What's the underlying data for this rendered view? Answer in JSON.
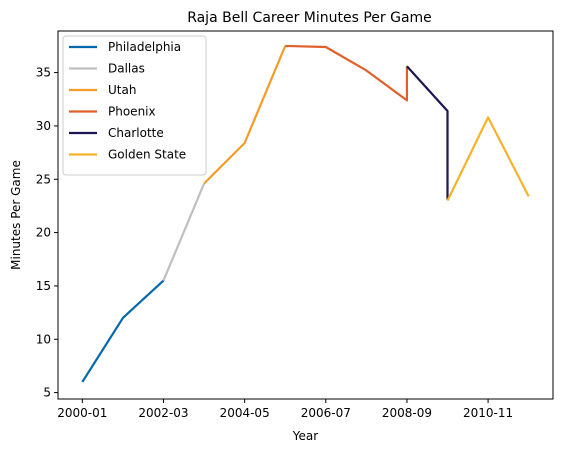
{
  "chart_data": {
    "type": "line",
    "title": "Raja Bell Career Minutes Per Game",
    "xlabel": "Year",
    "ylabel": "Minutes Per Game",
    "x_tick_labels": [
      "2000-01",
      "2002-03",
      "2004-05",
      "2006-07",
      "2008-09",
      "2010-11"
    ],
    "x_tick_positions": [
      0,
      2,
      4,
      6,
      8,
      10
    ],
    "xlim": [
      -0.6,
      11.6
    ],
    "ylim": [
      4.4,
      38.9
    ],
    "y_ticks": [
      5,
      10,
      15,
      20,
      25,
      30,
      35
    ],
    "grid": false,
    "legend_position": "top-left",
    "series": [
      {
        "name": "Philadelphia",
        "color": "#0068ad",
        "x": [
          0,
          1,
          2
        ],
        "y": [
          6.0,
          12.0,
          15.5
        ]
      },
      {
        "name": "Dallas",
        "color": "#bfbfbf",
        "x": [
          2,
          3
        ],
        "y": [
          15.5,
          24.6
        ]
      },
      {
        "name": "Utah",
        "color": "#f59c28",
        "x": [
          3,
          4,
          5
        ],
        "y": [
          24.6,
          28.4,
          37.5
        ]
      },
      {
        "name": "Phoenix",
        "color": "#e0602a",
        "x": [
          5,
          6,
          7,
          8,
          8
        ],
        "y": [
          37.5,
          37.4,
          35.2,
          32.4,
          35.6
        ]
      },
      {
        "name": "Charlotte",
        "color": "#1d1655",
        "x": [
          8,
          9,
          9
        ],
        "y": [
          35.6,
          31.4,
          23.1
        ]
      },
      {
        "name": "Golden State",
        "color": "#f7b22c",
        "x": [
          9,
          10,
          11
        ],
        "y": [
          23.0,
          30.8,
          23.4
        ]
      }
    ]
  }
}
